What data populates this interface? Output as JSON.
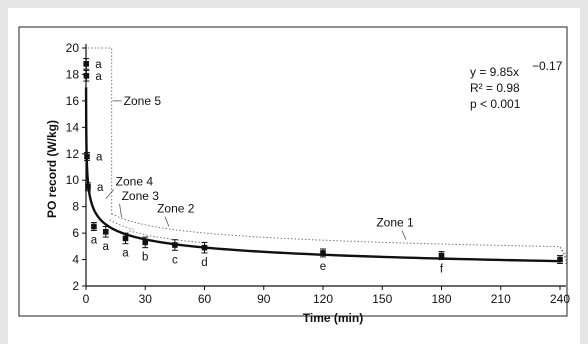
{
  "chart_data": {
    "type": "scatter",
    "xlabel": "Time (min)",
    "ylabel": "PO record (W/kg)",
    "xlim": [
      0,
      240
    ],
    "ylim": [
      2,
      20
    ],
    "x_ticks": [
      0,
      30,
      60,
      90,
      120,
      150,
      180,
      210,
      240
    ],
    "y_ticks": [
      2,
      4,
      6,
      8,
      10,
      12,
      14,
      16,
      18,
      20
    ],
    "grid": false,
    "fit": {
      "equation": "y = 9.85x",
      "exponent": "−0.17",
      "a": 9.85,
      "b": -0.17,
      "r2_text": "R² = 0.98",
      "p_text": "p < 0.001"
    },
    "points": [
      {
        "x": 0.1,
        "y": 18.8,
        "err": 0.4,
        "label": "a"
      },
      {
        "x": 0.2,
        "y": 17.9,
        "err": 0.4,
        "label": "a"
      },
      {
        "x": 0.5,
        "y": 11.8,
        "err": 0.3,
        "label": "a"
      },
      {
        "x": 1,
        "y": 9.5,
        "err": 0.3,
        "label": "a"
      },
      {
        "x": 4,
        "y": 6.5,
        "err": 0.3,
        "label": "a"
      },
      {
        "x": 10,
        "y": 6.1,
        "err": 0.4,
        "label": "a"
      },
      {
        "x": 20,
        "y": 5.6,
        "err": 0.4,
        "label": "a"
      },
      {
        "x": 30,
        "y": 5.3,
        "err": 0.4,
        "label": "b"
      },
      {
        "x": 45,
        "y": 5.1,
        "err": 0.4,
        "label": "c"
      },
      {
        "x": 60,
        "y": 4.9,
        "err": 0.4,
        "label": "d"
      },
      {
        "x": 120,
        "y": 4.5,
        "err": 0.3,
        "label": "e"
      },
      {
        "x": 180,
        "y": 4.3,
        "err": 0.3,
        "label": "f"
      },
      {
        "x": 240,
        "y": 4.0,
        "err": 0.3,
        "label": ""
      }
    ],
    "zones": [
      {
        "name": "Zone 5"
      },
      {
        "name": "Zone 4"
      },
      {
        "name": "Zone 3"
      },
      {
        "name": "Zone 2"
      },
      {
        "name": "Zone 1"
      }
    ]
  }
}
